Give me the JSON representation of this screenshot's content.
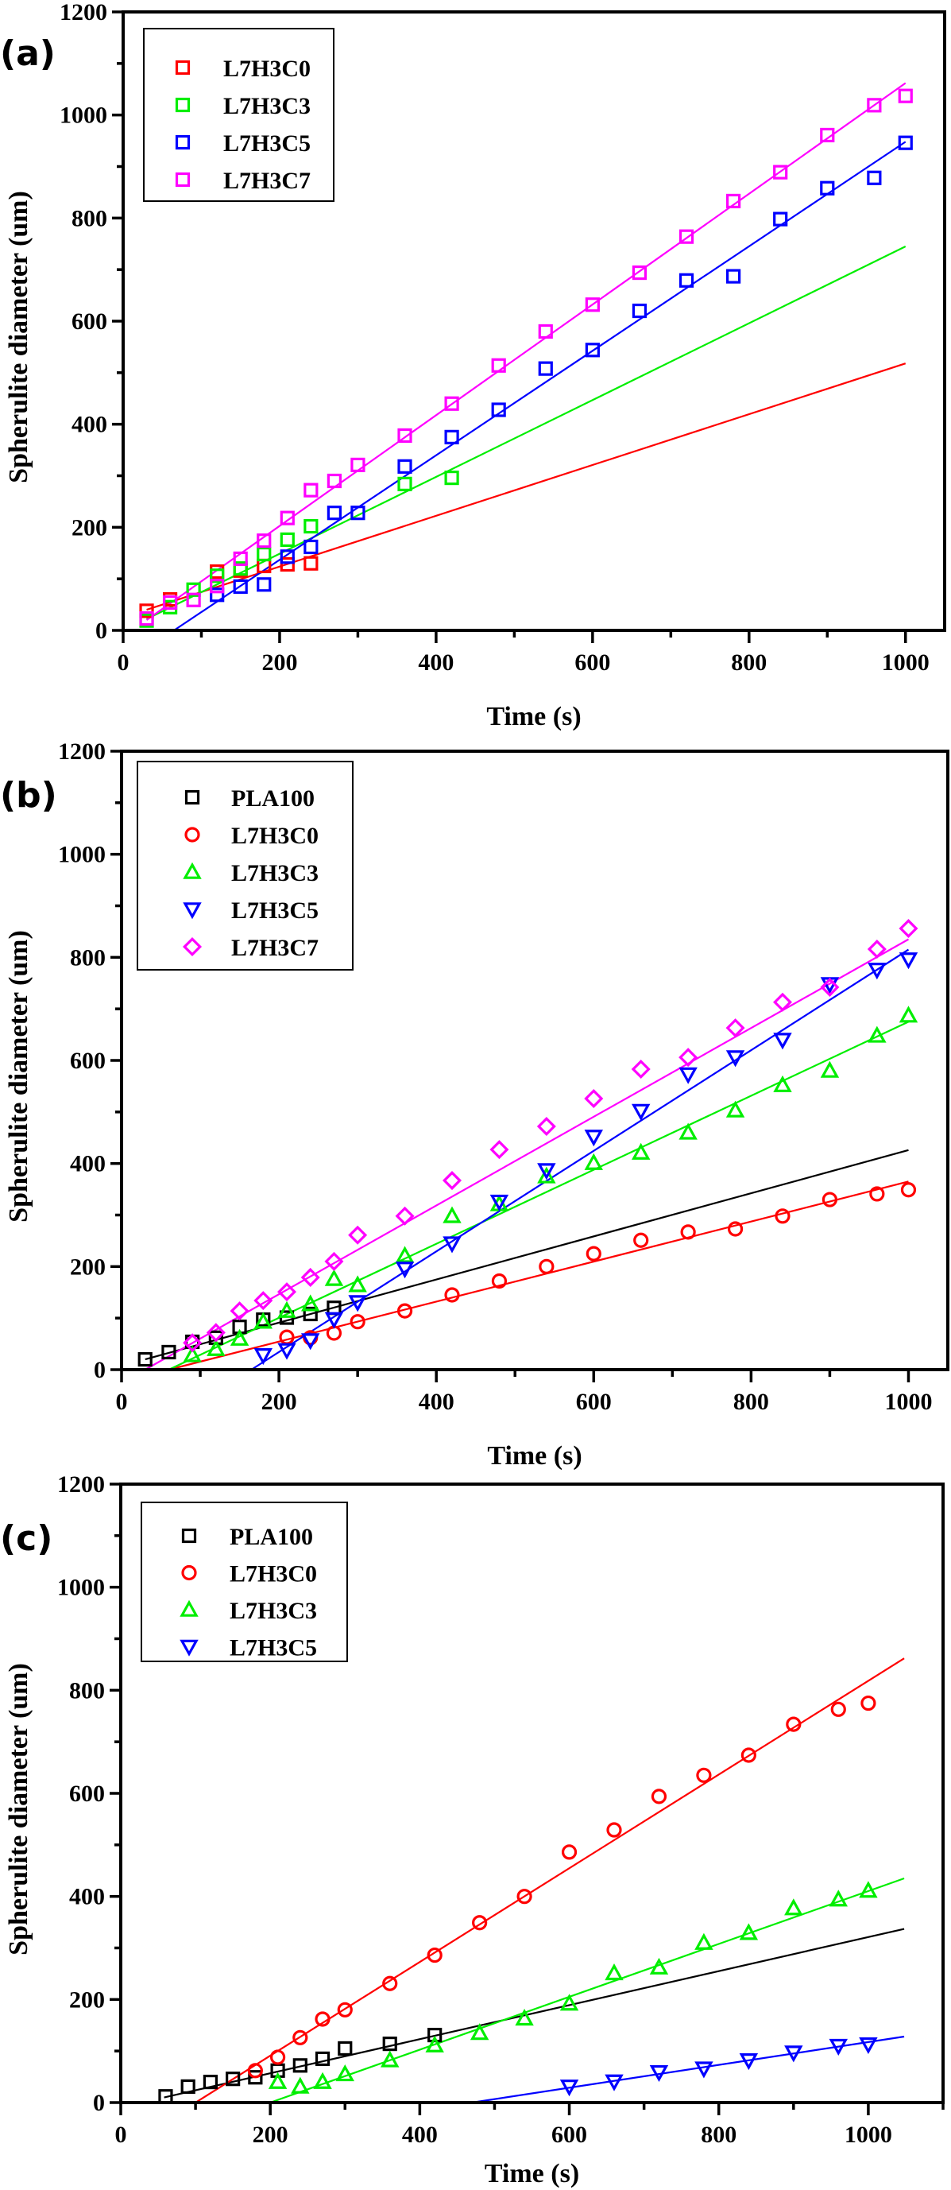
{
  "figure": {
    "description": "Spherulite diameter vs time for PLA blends",
    "colors": {
      "PLA100": "#000000",
      "L7H3C0": "#ff0000",
      "L7H3C3": "#00ee00",
      "L7H3C5": "#0000ff",
      "L7H3C7": "#ff00ff",
      "axis": "#000000"
    }
  },
  "chart_data": [
    {
      "panel_label": "(a)",
      "type": "scatter",
      "title": "",
      "xlabel": "Time (s)",
      "ylabel": "Spherulite diameter (um)",
      "xlim": [
        0,
        1050
      ],
      "ylim": [
        0,
        1200
      ],
      "xticks": [
        0,
        200,
        400,
        600,
        800,
        1000
      ],
      "xtick_labels": [
        "0",
        "200",
        "400",
        "600",
        "800",
        "1000"
      ],
      "yticks": [
        0,
        200,
        400,
        600,
        800,
        1000,
        1200
      ],
      "ytick_labels": [
        "0",
        "200",
        "400",
        "600",
        "800",
        "1000",
        "1200"
      ],
      "grid": false,
      "legend_position": "top-left",
      "series": [
        {
          "name": "L7H3C0",
          "color": "#ff0000",
          "marker": "square",
          "x": [
            30,
            60,
            120,
            150,
            180,
            210,
            240
          ],
          "y": [
            38,
            60,
            114,
            116,
            125,
            128,
            130
          ],
          "fit_line": {
            "x": [
              30,
              1000
            ],
            "y": [
              40,
              518
            ]
          }
        },
        {
          "name": "L7H3C3",
          "color": "#00ee00",
          "marker": "square",
          "x": [
            30,
            60,
            90,
            120,
            150,
            180,
            210,
            240,
            360,
            420
          ],
          "y": [
            19,
            45,
            79,
            106,
            120,
            148,
            176,
            202,
            284,
            296
          ],
          "fit_line": {
            "x": [
              30,
              1000
            ],
            "y": [
              22,
              745
            ]
          }
        },
        {
          "name": "L7H3C5",
          "color": "#0000ff",
          "marker": "square",
          "x": [
            120,
            150,
            180,
            210,
            240,
            270,
            300,
            360,
            420,
            480,
            540,
            600,
            660,
            720,
            780,
            840,
            900,
            960,
            1000
          ],
          "y": [
            69,
            85,
            89,
            143,
            162,
            228,
            228,
            318,
            375,
            428,
            508,
            544,
            620,
            679,
            687,
            798,
            858,
            878,
            946
          ],
          "fit_line": {
            "x": [
              65,
              1000
            ],
            "y": [
              0,
              948
            ]
          }
        },
        {
          "name": "L7H3C7",
          "color": "#ff00ff",
          "marker": "square",
          "x": [
            30,
            60,
            90,
            120,
            150,
            180,
            210,
            240,
            270,
            300,
            360,
            420,
            480,
            540,
            600,
            660,
            720,
            780,
            840,
            900,
            960,
            1000
          ],
          "y": [
            23,
            54,
            59,
            86,
            139,
            174,
            218,
            272,
            290,
            321,
            378,
            440,
            514,
            580,
            632,
            694,
            764,
            833,
            889,
            961,
            1019,
            1037
          ],
          "fit_line": {
            "x": [
              30,
              1000
            ],
            "y": [
              20,
              1062
            ]
          }
        }
      ]
    },
    {
      "panel_label": "(b)",
      "type": "scatter",
      "title": "",
      "xlabel": "Time (s)",
      "ylabel": "Spherulite diameter (um)",
      "xlim": [
        0,
        1050
      ],
      "ylim": [
        0,
        1200
      ],
      "xticks": [
        0,
        200,
        400,
        600,
        800,
        1000
      ],
      "xtick_labels": [
        "0",
        "200",
        "400",
        "600",
        "800",
        "1000"
      ],
      "yticks": [
        0,
        200,
        400,
        600,
        800,
        1000,
        1200
      ],
      "ytick_labels": [
        "0",
        "200",
        "400",
        "600",
        "800",
        "1000",
        "1200"
      ],
      "grid": false,
      "legend_position": "top-left",
      "series": [
        {
          "name": "PLA100",
          "color": "#000000",
          "marker": "square",
          "x": [
            30,
            60,
            90,
            120,
            150,
            180,
            210,
            240,
            270
          ],
          "y": [
            20,
            34,
            54,
            62,
            83,
            97,
            101,
            108,
            120
          ],
          "fit_line": {
            "x": [
              30,
              1000
            ],
            "y": [
              20,
              426
            ]
          }
        },
        {
          "name": "L7H3C0",
          "color": "#ff0000",
          "marker": "circle",
          "x": [
            210,
            240,
            270,
            300,
            360,
            420,
            480,
            540,
            600,
            660,
            720,
            780,
            840,
            900,
            960,
            1000
          ],
          "y": [
            63,
            62,
            71,
            93,
            114,
            145,
            172,
            200,
            225,
            251,
            267,
            273,
            298,
            330,
            341,
            349
          ],
          "fit_line": {
            "x": [
              60,
              1000
            ],
            "y": [
              0,
              365
            ]
          }
        },
        {
          "name": "L7H3C3",
          "color": "#00ee00",
          "marker": "triangle-up",
          "x": [
            90,
            120,
            150,
            180,
            210,
            240,
            270,
            300,
            360,
            420,
            480,
            540,
            600,
            660,
            720,
            780,
            840,
            900,
            960,
            1000
          ],
          "y": [
            28,
            40,
            60,
            93,
            114,
            127,
            176,
            164,
            221,
            298,
            321,
            375,
            401,
            421,
            460,
            503,
            552,
            580,
            648,
            687
          ],
          "fit_line": {
            "x": [
              60,
              1000
            ],
            "y": [
              0,
              675
            ]
          }
        },
        {
          "name": "L7H3C5",
          "color": "#0000ff",
          "marker": "triangle-down",
          "x": [
            180,
            210,
            240,
            270,
            300,
            360,
            420,
            480,
            540,
            600,
            660,
            720,
            780,
            840,
            900,
            960,
            1000
          ],
          "y": [
            28,
            38,
            57,
            98,
            131,
            196,
            245,
            326,
            387,
            452,
            502,
            573,
            606,
            640,
            748,
            776,
            796
          ],
          "fit_line": {
            "x": [
              165,
              1000
            ],
            "y": [
              0,
              815
            ]
          }
        },
        {
          "name": "L7H3C7",
          "color": "#ff00ff",
          "marker": "diamond",
          "x": [
            90,
            120,
            150,
            180,
            210,
            240,
            270,
            300,
            360,
            420,
            480,
            540,
            600,
            660,
            720,
            780,
            840,
            900,
            960,
            1000
          ],
          "y": [
            52,
            72,
            114,
            134,
            151,
            179,
            210,
            261,
            298,
            367,
            427,
            472,
            526,
            583,
            606,
            663,
            713,
            742,
            816,
            856
          ],
          "fit_line": {
            "x": [
              30,
              1000
            ],
            "y": [
              0,
              835
            ]
          }
        }
      ]
    },
    {
      "panel_label": "(c)",
      "type": "scatter",
      "title": "",
      "xlabel": "Time (s)",
      "ylabel": "Spherulite diameter (um)",
      "xlim": [
        0,
        1100
      ],
      "ylim": [
        0,
        1200
      ],
      "xticks": [
        0,
        200,
        400,
        600,
        800,
        1000
      ],
      "xtick_labels": [
        "0",
        "200",
        "400",
        "600",
        "800",
        "1000"
      ],
      "yticks": [
        0,
        200,
        400,
        600,
        800,
        1000,
        1200
      ],
      "ytick_labels": [
        "0",
        "200",
        "400",
        "600",
        "800",
        "1000",
        "1200"
      ],
      "grid": false,
      "legend_position": "top-left",
      "series": [
        {
          "name": "PLA100",
          "color": "#000000",
          "marker": "square",
          "x": [
            60,
            90,
            120,
            150,
            180,
            210,
            240,
            270,
            300,
            360,
            420
          ],
          "y": [
            12,
            31,
            40,
            46,
            49,
            62,
            72,
            85,
            105,
            114,
            131
          ],
          "fit_line": {
            "x": [
              58,
              1048
            ],
            "y": [
              10,
              337
            ]
          }
        },
        {
          "name": "L7H3C0",
          "color": "#ff0000",
          "marker": "circle",
          "x": [
            180,
            210,
            240,
            270,
            300,
            360,
            420,
            480,
            540,
            600,
            660,
            720,
            780,
            840,
            900,
            960,
            1000
          ],
          "y": [
            62,
            88,
            126,
            162,
            180,
            231,
            286,
            349,
            400,
            486,
            529,
            594,
            635,
            674,
            734,
            763,
            775
          ],
          "fit_line": {
            "x": [
              100,
              1048
            ],
            "y": [
              0,
              862
            ]
          }
        },
        {
          "name": "L7H3C3",
          "color": "#00ee00",
          "marker": "triangle-up",
          "x": [
            210,
            240,
            270,
            300,
            360,
            420,
            480,
            540,
            600,
            660,
            720,
            780,
            840,
            900,
            960,
            1000
          ],
          "y": [
            40,
            31,
            40,
            55,
            82,
            111,
            135,
            163,
            192,
            251,
            262,
            310,
            329,
            377,
            394,
            411
          ],
          "fit_line": {
            "x": [
              200,
              1048
            ],
            "y": [
              0,
              435
            ]
          }
        },
        {
          "name": "L7H3C5",
          "color": "#0000ff",
          "marker": "triangle-down",
          "x": [
            600,
            660,
            720,
            780,
            840,
            900,
            960,
            1000
          ],
          "y": [
            31,
            41,
            59,
            66,
            82,
            97,
            110,
            113
          ],
          "fit_line": {
            "x": [
              470,
              1048
            ],
            "y": [
              0,
              128
            ]
          }
        }
      ]
    }
  ]
}
